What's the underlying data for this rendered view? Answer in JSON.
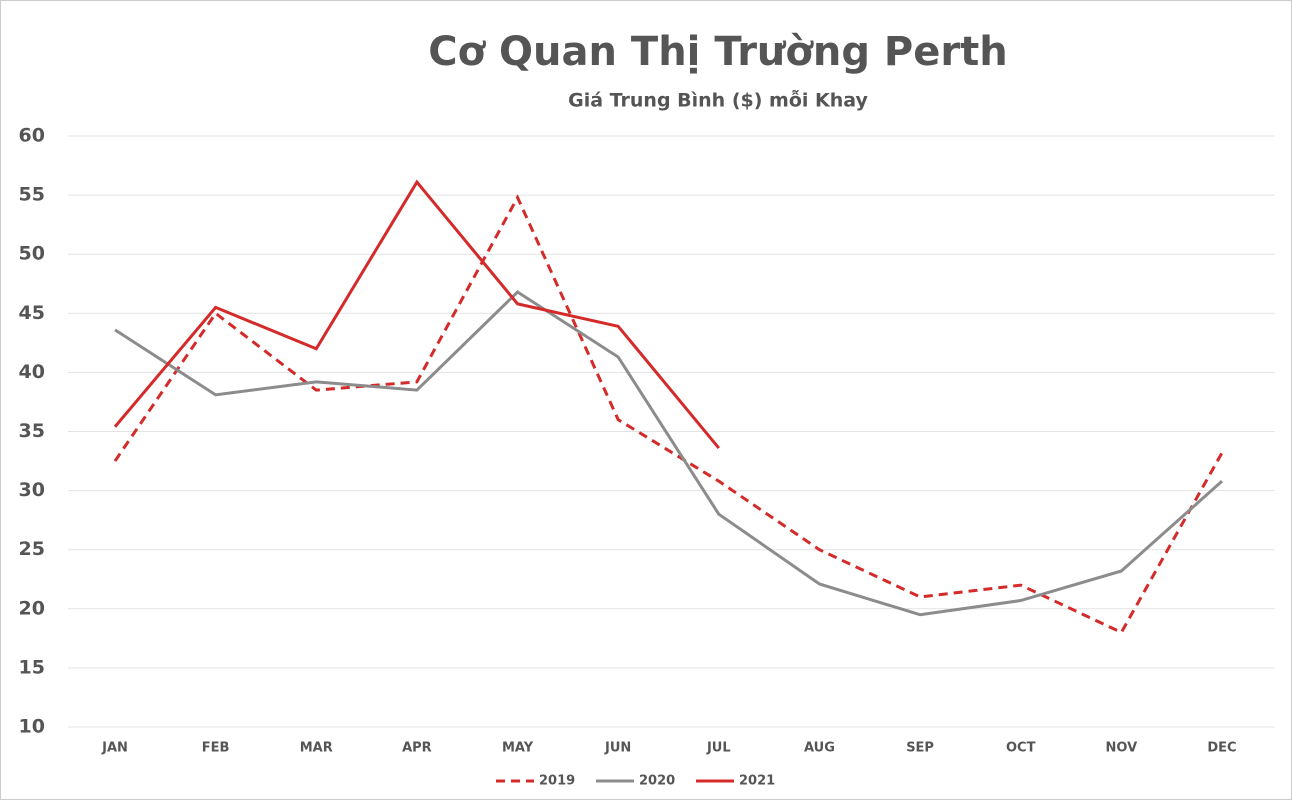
{
  "chart_data": {
    "type": "line",
    "title": "Cơ Quan Thị Trường Perth",
    "subtitle": "Giá Trung Bình ($) mỗi Khay",
    "categories": [
      "JAN",
      "FEB",
      "MAR",
      "APR",
      "MAY",
      "JUN",
      "JUL",
      "AUG",
      "SEP",
      "OCT",
      "NOV",
      "DEC"
    ],
    "series": [
      {
        "name": "2019",
        "color": "#d42a2a",
        "style": "dashed",
        "values": [
          32.5,
          45,
          38.5,
          39.2,
          54.8,
          36,
          30.8,
          25,
          21,
          22,
          18,
          33.2
        ]
      },
      {
        "name": "2020",
        "color": "#8c8c8c",
        "style": "solid",
        "values": [
          43.6,
          38.1,
          39.2,
          38.5,
          46.8,
          41.3,
          28,
          22.1,
          19.5,
          20.7,
          23.2,
          30.8
        ]
      },
      {
        "name": "2021",
        "color": "#d42a2a",
        "style": "solid",
        "values": [
          35.4,
          45.5,
          42,
          56.1,
          45.8,
          43.9,
          33.6,
          null,
          null,
          null,
          null,
          null
        ]
      }
    ],
    "ylim": [
      10,
      60
    ],
    "yticks": [
      10,
      15,
      20,
      25,
      30,
      35,
      40,
      45,
      50,
      55,
      60
    ],
    "grid": true,
    "legend": "bottom"
  }
}
